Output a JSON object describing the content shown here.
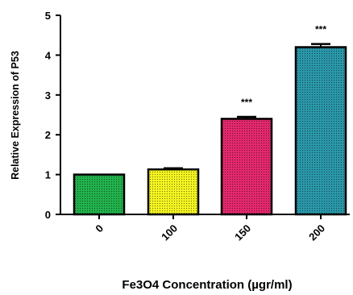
{
  "chart_data": {
    "type": "bar",
    "title": "",
    "xlabel": "Fe3O4 Concentration (µgr/ml)",
    "ylabel": "Relative Expression of P53",
    "categories": [
      "0",
      "100",
      "150",
      "200"
    ],
    "values": [
      1.0,
      1.13,
      2.4,
      4.2
    ],
    "errors": [
      0.0,
      0.03,
      0.05,
      0.08
    ],
    "significance": [
      "",
      "",
      "***",
      "***"
    ],
    "colors": [
      "#22b14c",
      "#f3f321",
      "#e3286e",
      "#2a97a9"
    ],
    "ylim": [
      0,
      5
    ],
    "yticks": [
      "0",
      "1",
      "2",
      "3",
      "4",
      "5"
    ],
    "grid": false,
    "legend": "none"
  }
}
